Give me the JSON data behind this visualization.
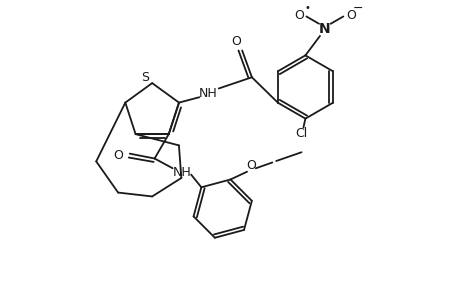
{
  "bg_color": "#ffffff",
  "line_color": "#1a1a1a",
  "line_width": 1.3,
  "fig_width": 4.6,
  "fig_height": 3.0,
  "dpi": 100,
  "xlim": [
    0,
    9.2
  ],
  "ylim": [
    0,
    6.0
  ]
}
